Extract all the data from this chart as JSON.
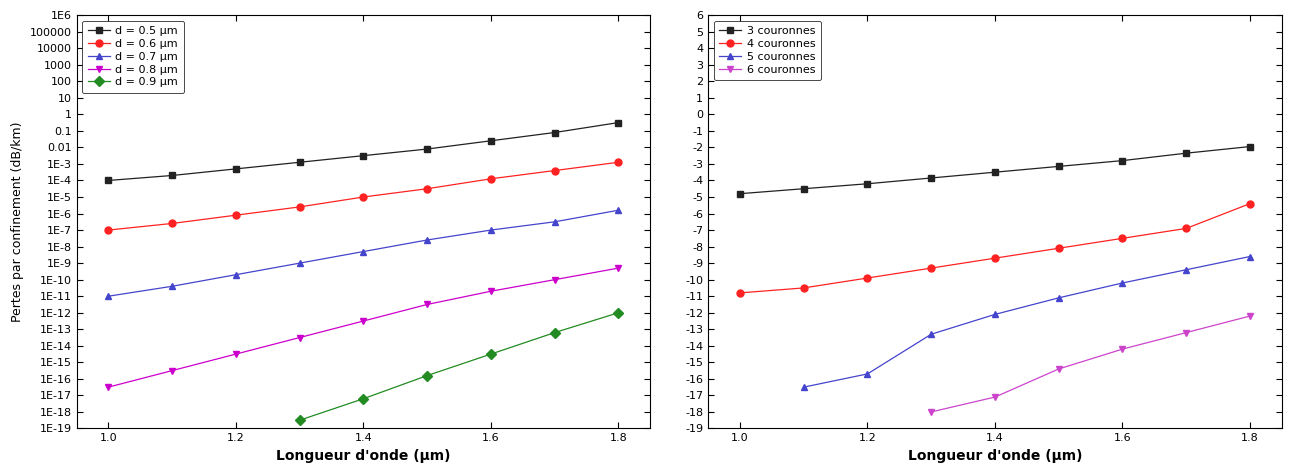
{
  "left": {
    "ylabel": "Pertes par confinement (dB/km)",
    "xlabel": "Longueur d'onde (μm)",
    "ylim_log": [
      -19,
      6
    ],
    "xlim": [
      0.95,
      1.85
    ],
    "xticks": [
      1.0,
      1.2,
      1.4,
      1.6,
      1.8
    ],
    "ytick_labels": {
      "6": "1E6",
      "5": "100000",
      "4": "10000",
      "3": "1000",
      "2": "100",
      "1": "10",
      "0": "1",
      "-1": "0.1",
      "-2": "0.01",
      "-3": "1E-3",
      "-4": "1E-4",
      "-5": "1E-5",
      "-6": "1E-6",
      "-7": "1E-7",
      "-8": "1E-8",
      "-9": "1E-9",
      "-10": "1E-10",
      "-11": "1E-11",
      "-12": "1E-12",
      "-13": "1E-13",
      "-14": "1E-14",
      "-15": "1E-15",
      "-16": "1E-16",
      "-17": "1E-17",
      "-18": "1E-18",
      "-19": "1E-19"
    },
    "series": [
      {
        "label": "d = 0.5 μm",
        "color": "#222222",
        "marker": "s",
        "linestyle": "-",
        "x": [
          1.0,
          1.1,
          1.2,
          1.3,
          1.4,
          1.5,
          1.6,
          1.7,
          1.8
        ],
        "y_log10": [
          -4.0,
          -3.7,
          -3.3,
          -2.9,
          -2.5,
          -2.1,
          -1.6,
          -1.1,
          -0.5
        ]
      },
      {
        "label": "d = 0.6 μm",
        "color": "#ff2222",
        "marker": "o",
        "linestyle": "-",
        "x": [
          1.0,
          1.1,
          1.2,
          1.3,
          1.4,
          1.5,
          1.6,
          1.7,
          1.8
        ],
        "y_log10": [
          -7.0,
          -6.6,
          -6.1,
          -5.6,
          -5.0,
          -4.5,
          -3.9,
          -3.4,
          -2.9
        ]
      },
      {
        "label": "d = 0.7 μm",
        "color": "#4444cc",
        "marker": "^",
        "linestyle": "-",
        "x": [
          1.0,
          1.1,
          1.2,
          1.3,
          1.4,
          1.5,
          1.6,
          1.7,
          1.8
        ],
        "y_log10": [
          -11.0,
          -10.4,
          -9.7,
          -9.0,
          -8.3,
          -7.6,
          -7.0,
          -6.5,
          -5.8
        ]
      },
      {
        "label": "d = 0.8 μm",
        "color": "#cc00cc",
        "marker": "v",
        "linestyle": "-",
        "x": [
          1.0,
          1.1,
          1.2,
          1.3,
          1.4,
          1.5,
          1.6,
          1.7,
          1.8
        ],
        "y_log10": [
          -16.5,
          -15.5,
          -14.5,
          -13.5,
          -12.5,
          -11.5,
          -10.7,
          -10.0,
          -9.3
        ]
      },
      {
        "label": "d = 0.9 μm",
        "color": "#228B22",
        "marker": "D",
        "linestyle": "-",
        "x": [
          1.3,
          1.4,
          1.5,
          1.6,
          1.7,
          1.8
        ],
        "y_log10": [
          -18.5,
          -17.2,
          -15.8,
          -14.5,
          -13.2,
          -12.0
        ]
      }
    ]
  },
  "right": {
    "xlabel": "Longueur d'onde (μm)",
    "ylim_log": [
      -19,
      6
    ],
    "xlim": [
      0.95,
      1.85
    ],
    "xticks": [
      1.0,
      1.2,
      1.4,
      1.6,
      1.8
    ],
    "series": [
      {
        "label": "3 couronnes",
        "color": "#222222",
        "marker": "s",
        "linestyle": "-",
        "x": [
          1.0,
          1.1,
          1.2,
          1.3,
          1.4,
          1.5,
          1.6,
          1.7,
          1.8
        ],
        "y_log10": [
          -4.8,
          -4.5,
          -4.2,
          -3.85,
          -3.5,
          -3.15,
          -2.8,
          -2.35,
          -1.95
        ]
      },
      {
        "label": "4 couronnes",
        "color": "#ff2222",
        "marker": "o",
        "linestyle": "-",
        "x": [
          1.0,
          1.1,
          1.2,
          1.3,
          1.4,
          1.5,
          1.6,
          1.7,
          1.8
        ],
        "y_log10": [
          -10.8,
          -10.5,
          -9.9,
          -9.3,
          -8.7,
          -8.1,
          -7.5,
          -6.9,
          -5.4
        ]
      },
      {
        "label": "5 couronnes",
        "color": "#4444cc",
        "marker": "^",
        "linestyle": "-",
        "x": [
          1.1,
          1.2,
          1.3,
          1.4,
          1.5,
          1.6,
          1.7,
          1.8
        ],
        "y_log10": [
          -16.5,
          -15.7,
          -13.3,
          -12.1,
          -11.1,
          -10.2,
          -9.4,
          -8.6
        ]
      },
      {
        "label": "6 couronnes",
        "color": "#cc44cc",
        "marker": "v",
        "linestyle": "-",
        "x": [
          1.3,
          1.4,
          1.5,
          1.6,
          1.7,
          1.8
        ],
        "y_log10": [
          -18.0,
          -17.1,
          -15.4,
          -14.2,
          -13.2,
          -12.2
        ]
      }
    ]
  }
}
